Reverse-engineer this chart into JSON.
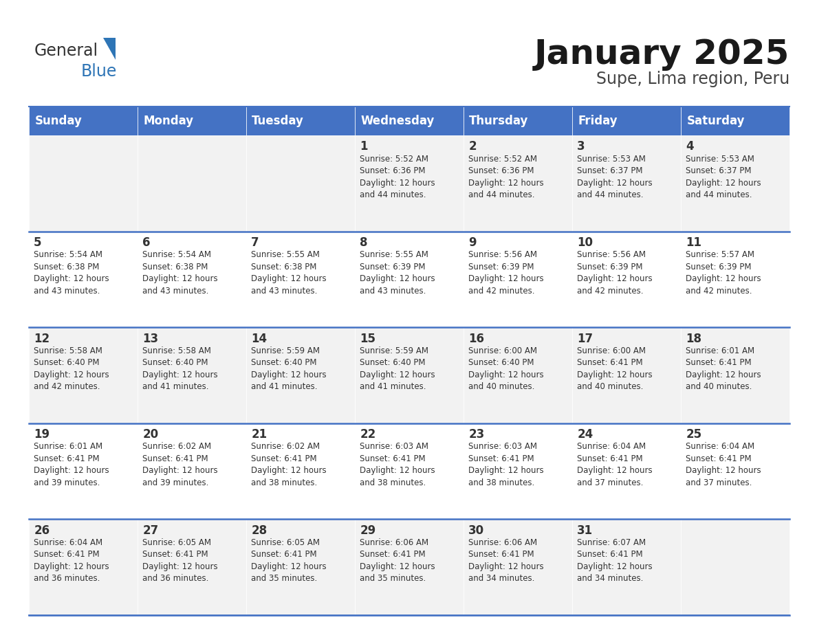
{
  "title": "January 2025",
  "subtitle": "Supe, Lima region, Peru",
  "header_bg": "#4472C4",
  "header_text_color": "#FFFFFF",
  "border_color": "#4472C4",
  "text_color": "#333333",
  "days_of_week": [
    "Sunday",
    "Monday",
    "Tuesday",
    "Wednesday",
    "Thursday",
    "Friday",
    "Saturday"
  ],
  "weeks": [
    [
      {
        "day": "",
        "info": ""
      },
      {
        "day": "",
        "info": ""
      },
      {
        "day": "",
        "info": ""
      },
      {
        "day": "1",
        "info": "Sunrise: 5:52 AM\nSunset: 6:36 PM\nDaylight: 12 hours\nand 44 minutes."
      },
      {
        "day": "2",
        "info": "Sunrise: 5:52 AM\nSunset: 6:36 PM\nDaylight: 12 hours\nand 44 minutes."
      },
      {
        "day": "3",
        "info": "Sunrise: 5:53 AM\nSunset: 6:37 PM\nDaylight: 12 hours\nand 44 minutes."
      },
      {
        "day": "4",
        "info": "Sunrise: 5:53 AM\nSunset: 6:37 PM\nDaylight: 12 hours\nand 44 minutes."
      }
    ],
    [
      {
        "day": "5",
        "info": "Sunrise: 5:54 AM\nSunset: 6:38 PM\nDaylight: 12 hours\nand 43 minutes."
      },
      {
        "day": "6",
        "info": "Sunrise: 5:54 AM\nSunset: 6:38 PM\nDaylight: 12 hours\nand 43 minutes."
      },
      {
        "day": "7",
        "info": "Sunrise: 5:55 AM\nSunset: 6:38 PM\nDaylight: 12 hours\nand 43 minutes."
      },
      {
        "day": "8",
        "info": "Sunrise: 5:55 AM\nSunset: 6:39 PM\nDaylight: 12 hours\nand 43 minutes."
      },
      {
        "day": "9",
        "info": "Sunrise: 5:56 AM\nSunset: 6:39 PM\nDaylight: 12 hours\nand 42 minutes."
      },
      {
        "day": "10",
        "info": "Sunrise: 5:56 AM\nSunset: 6:39 PM\nDaylight: 12 hours\nand 42 minutes."
      },
      {
        "day": "11",
        "info": "Sunrise: 5:57 AM\nSunset: 6:39 PM\nDaylight: 12 hours\nand 42 minutes."
      }
    ],
    [
      {
        "day": "12",
        "info": "Sunrise: 5:58 AM\nSunset: 6:40 PM\nDaylight: 12 hours\nand 42 minutes."
      },
      {
        "day": "13",
        "info": "Sunrise: 5:58 AM\nSunset: 6:40 PM\nDaylight: 12 hours\nand 41 minutes."
      },
      {
        "day": "14",
        "info": "Sunrise: 5:59 AM\nSunset: 6:40 PM\nDaylight: 12 hours\nand 41 minutes."
      },
      {
        "day": "15",
        "info": "Sunrise: 5:59 AM\nSunset: 6:40 PM\nDaylight: 12 hours\nand 41 minutes."
      },
      {
        "day": "16",
        "info": "Sunrise: 6:00 AM\nSunset: 6:40 PM\nDaylight: 12 hours\nand 40 minutes."
      },
      {
        "day": "17",
        "info": "Sunrise: 6:00 AM\nSunset: 6:41 PM\nDaylight: 12 hours\nand 40 minutes."
      },
      {
        "day": "18",
        "info": "Sunrise: 6:01 AM\nSunset: 6:41 PM\nDaylight: 12 hours\nand 40 minutes."
      }
    ],
    [
      {
        "day": "19",
        "info": "Sunrise: 6:01 AM\nSunset: 6:41 PM\nDaylight: 12 hours\nand 39 minutes."
      },
      {
        "day": "20",
        "info": "Sunrise: 6:02 AM\nSunset: 6:41 PM\nDaylight: 12 hours\nand 39 minutes."
      },
      {
        "day": "21",
        "info": "Sunrise: 6:02 AM\nSunset: 6:41 PM\nDaylight: 12 hours\nand 38 minutes."
      },
      {
        "day": "22",
        "info": "Sunrise: 6:03 AM\nSunset: 6:41 PM\nDaylight: 12 hours\nand 38 minutes."
      },
      {
        "day": "23",
        "info": "Sunrise: 6:03 AM\nSunset: 6:41 PM\nDaylight: 12 hours\nand 38 minutes."
      },
      {
        "day": "24",
        "info": "Sunrise: 6:04 AM\nSunset: 6:41 PM\nDaylight: 12 hours\nand 37 minutes."
      },
      {
        "day": "25",
        "info": "Sunrise: 6:04 AM\nSunset: 6:41 PM\nDaylight: 12 hours\nand 37 minutes."
      }
    ],
    [
      {
        "day": "26",
        "info": "Sunrise: 6:04 AM\nSunset: 6:41 PM\nDaylight: 12 hours\nand 36 minutes."
      },
      {
        "day": "27",
        "info": "Sunrise: 6:05 AM\nSunset: 6:41 PM\nDaylight: 12 hours\nand 36 minutes."
      },
      {
        "day": "28",
        "info": "Sunrise: 6:05 AM\nSunset: 6:41 PM\nDaylight: 12 hours\nand 35 minutes."
      },
      {
        "day": "29",
        "info": "Sunrise: 6:06 AM\nSunset: 6:41 PM\nDaylight: 12 hours\nand 35 minutes."
      },
      {
        "day": "30",
        "info": "Sunrise: 6:06 AM\nSunset: 6:41 PM\nDaylight: 12 hours\nand 34 minutes."
      },
      {
        "day": "31",
        "info": "Sunrise: 6:07 AM\nSunset: 6:41 PM\nDaylight: 12 hours\nand 34 minutes."
      },
      {
        "day": "",
        "info": ""
      }
    ]
  ],
  "logo_general_color": "#333333",
  "logo_blue_color": "#2E75B6",
  "logo_triangle_color": "#2E75B6",
  "title_fontsize": 36,
  "subtitle_fontsize": 17,
  "header_fontsize": 12,
  "day_num_fontsize": 12,
  "day_info_fontsize": 8.5
}
